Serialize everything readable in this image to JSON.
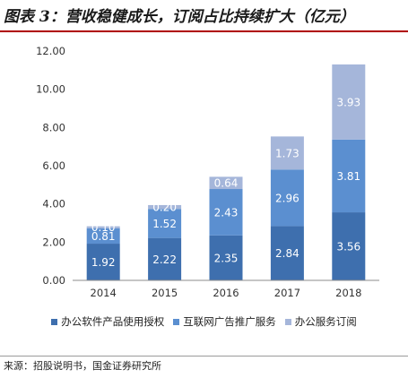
{
  "figure": {
    "title": "图表 3：营收稳健成长，订阅占比持续扩大（亿元）",
    "source": "来源：招股说明书，国金证券研究所"
  },
  "chart_data": {
    "type": "bar",
    "stacked": true,
    "categories": [
      "2014",
      "2015",
      "2016",
      "2017",
      "2018"
    ],
    "series": [
      {
        "name": "办公软件产品使用授权",
        "color": "#3e6fae",
        "label_color": "#ffffff",
        "values": [
          1.92,
          2.22,
          2.35,
          2.84,
          3.56
        ]
      },
      {
        "name": "互联网广告推广服务",
        "color": "#5b8fd0",
        "label_color": "#ffffff",
        "values": [
          0.81,
          1.52,
          2.43,
          2.96,
          3.81
        ]
      },
      {
        "name": "办公服务订阅",
        "color": "#a5b6da",
        "label_color": "#ffffff",
        "values": [
          0.1,
          0.2,
          0.64,
          1.73,
          3.93
        ]
      }
    ],
    "ylim": [
      0,
      12
    ],
    "yticks": [
      "0.00",
      "2.00",
      "4.00",
      "6.00",
      "8.00",
      "10.00",
      "12.00"
    ],
    "grid": false,
    "legend_position": "bottom"
  }
}
